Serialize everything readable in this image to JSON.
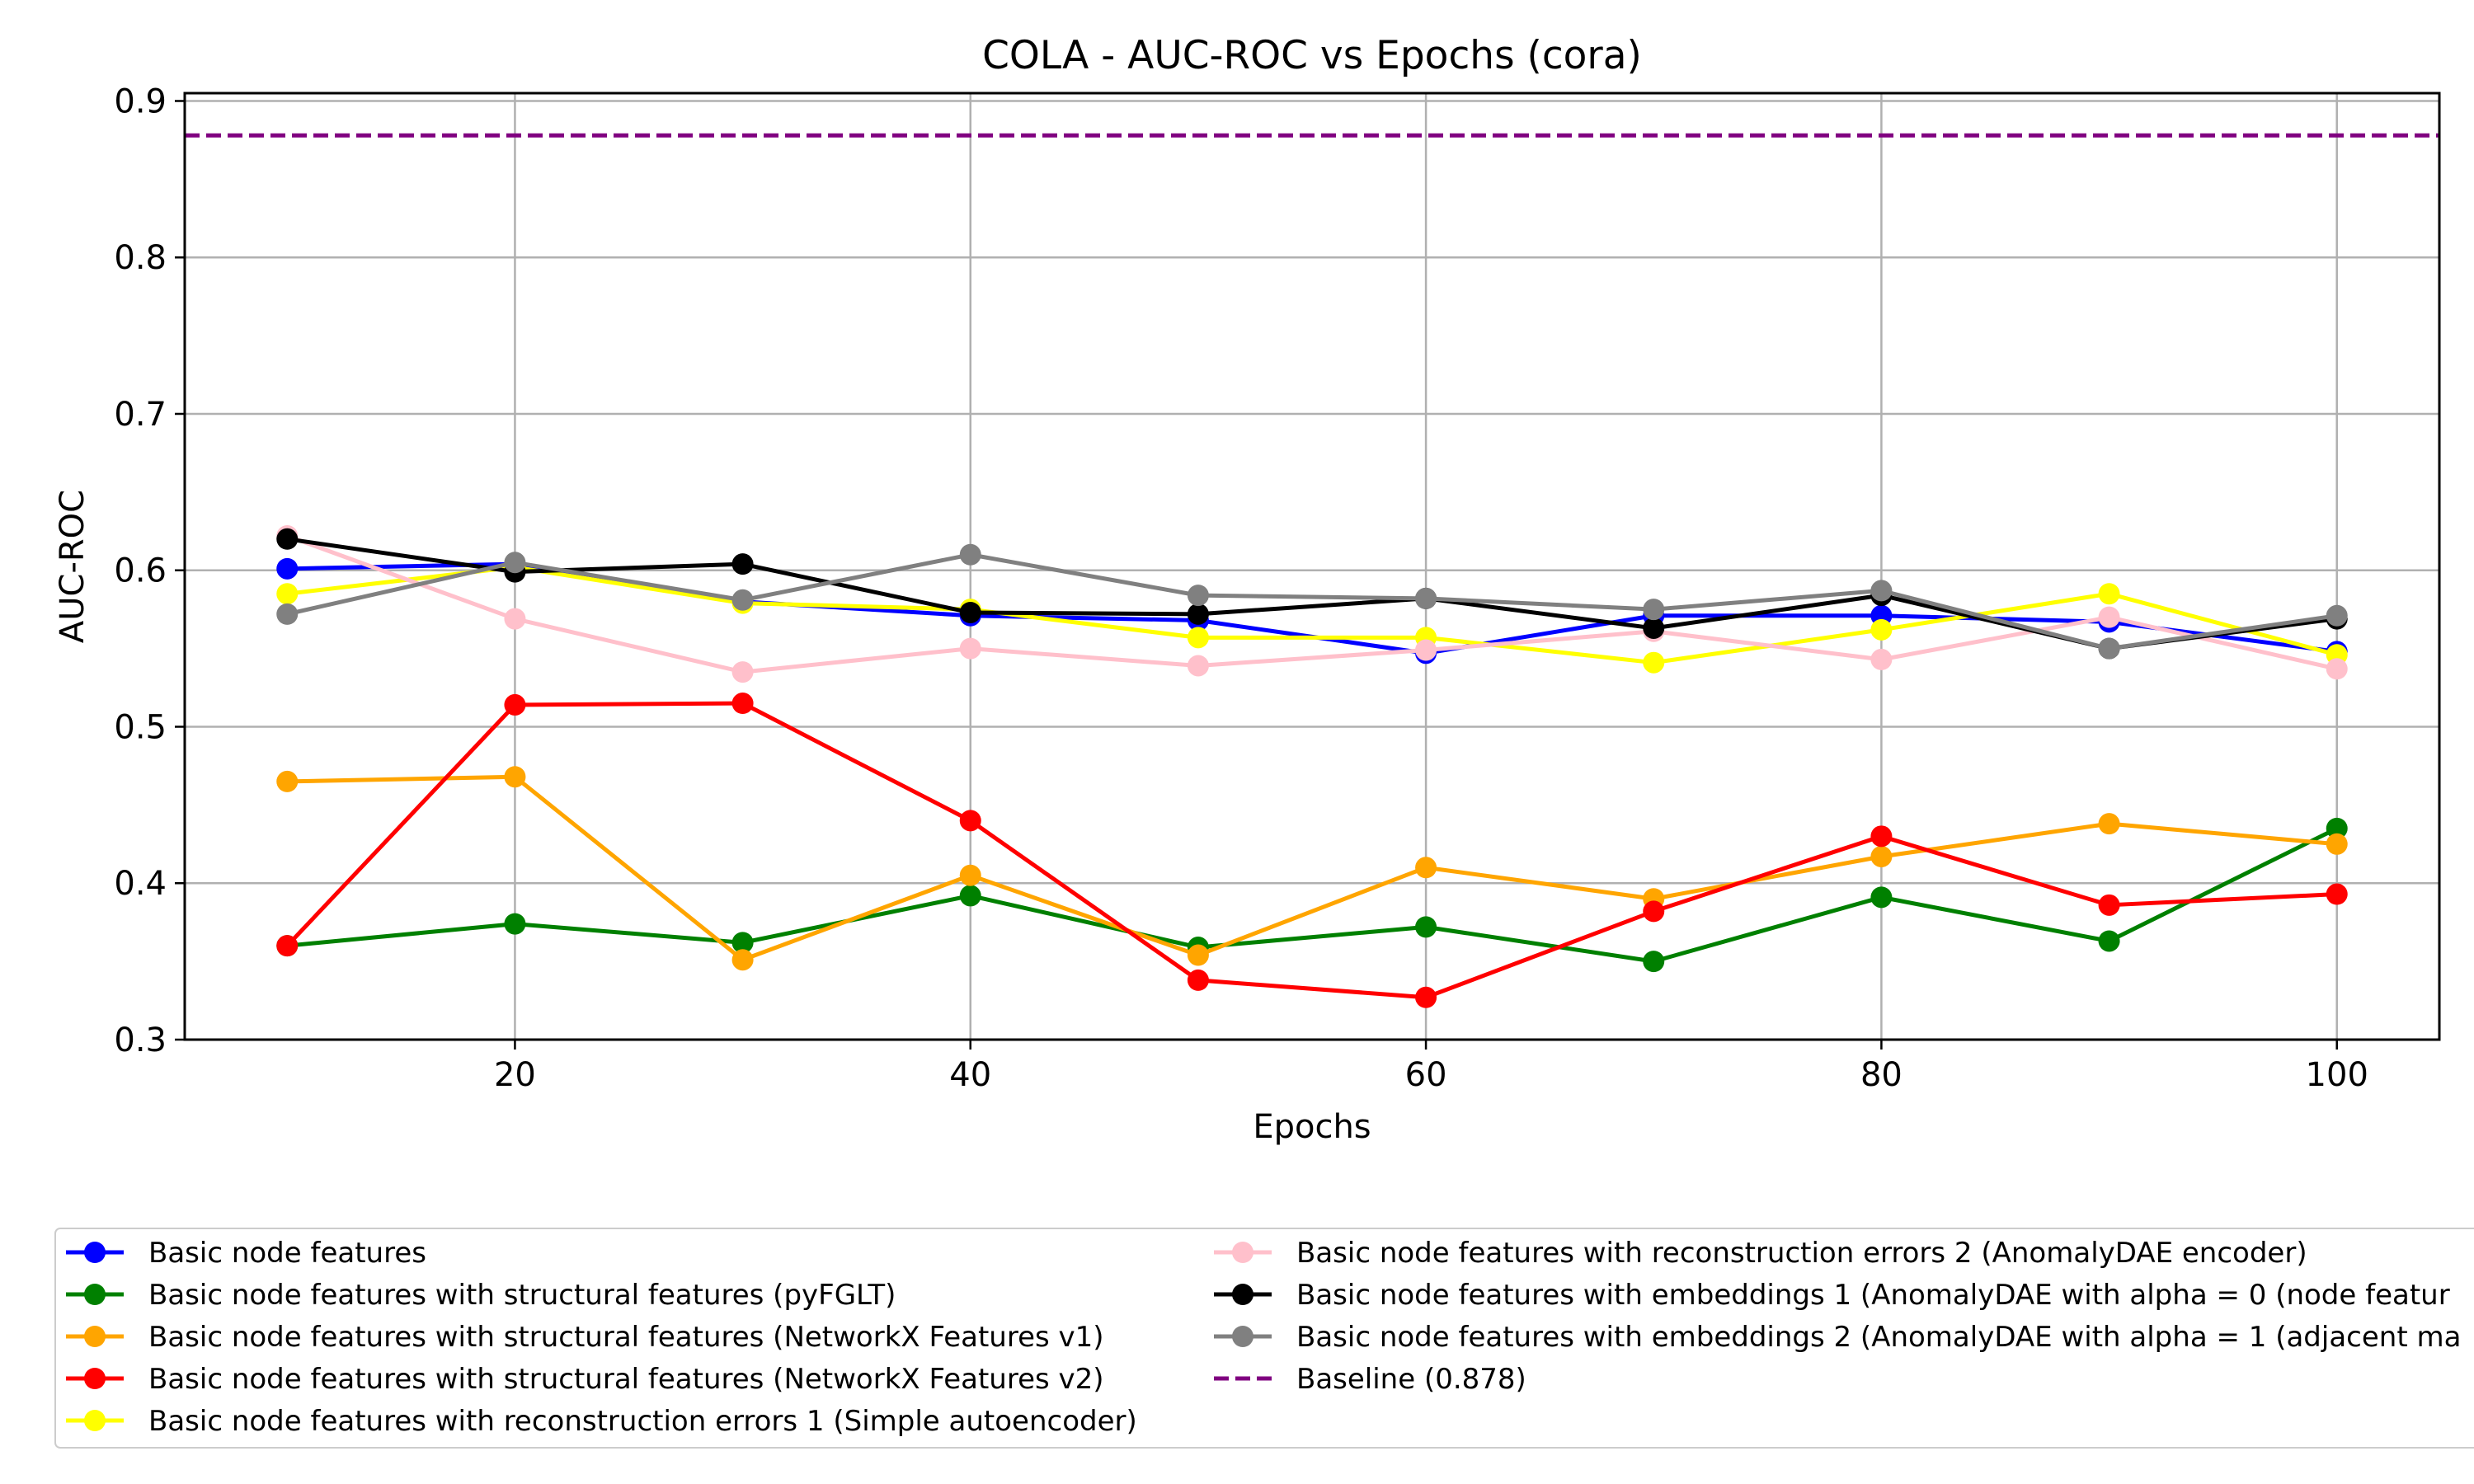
{
  "chart_data": {
    "type": "line",
    "title": "COLA - AUC-ROC vs Epochs (cora)",
    "xlabel": "Epochs",
    "ylabel": "AUC-ROC",
    "xlim": [
      5.5,
      104.5
    ],
    "ylim": [
      0.3,
      0.905
    ],
    "xticks": [
      20,
      40,
      60,
      80,
      100
    ],
    "yticks": [
      0.3,
      0.4,
      0.5,
      0.6,
      0.7,
      0.8,
      0.9
    ],
    "xtick_labels": [
      "20",
      "40",
      "60",
      "80",
      "100"
    ],
    "ytick_labels": [
      "0.3",
      "0.4",
      "0.5",
      "0.6",
      "0.7",
      "0.8",
      "0.9"
    ],
    "grid": true,
    "legend_position": "bottom",
    "x": [
      10,
      20,
      30,
      40,
      50,
      60,
      70,
      80,
      90,
      100
    ],
    "series": [
      {
        "name": "Basic node features",
        "color": "#0000ff",
        "values": [
          0.601,
          0.604,
          0.58,
          0.571,
          0.568,
          0.547,
          0.571,
          0.571,
          0.567,
          0.548
        ]
      },
      {
        "name": "Basic node features with structural features (pyFGLT)",
        "color": "#008000",
        "values": [
          0.36,
          0.374,
          0.362,
          0.392,
          0.359,
          0.372,
          0.35,
          0.391,
          0.363,
          0.435
        ]
      },
      {
        "name": "Basic node features with structural features (NetworkX Features v1)",
        "color": "#ffa500",
        "values": [
          0.465,
          0.468,
          0.351,
          0.405,
          0.354,
          0.41,
          0.39,
          0.417,
          0.438,
          0.425
        ]
      },
      {
        "name": "Basic node features with structural features (NetworkX Features v2)",
        "color": "#ff0000",
        "values": [
          0.36,
          0.514,
          0.515,
          0.44,
          0.338,
          0.327,
          0.382,
          0.43,
          0.386,
          0.393
        ]
      },
      {
        "name": "Basic node features with reconstruction errors 1 (Simple autoencoder)",
        "color": "#ffff00",
        "values": [
          0.585,
          0.602,
          0.579,
          0.575,
          0.557,
          0.557,
          0.541,
          0.562,
          0.585,
          0.546
        ]
      },
      {
        "name": "Basic node features with reconstruction errors 2 (AnomalyDAE encoder)",
        "color": "#ffc0cb",
        "values": [
          0.622,
          0.569,
          0.535,
          0.55,
          0.539,
          0.549,
          0.561,
          0.543,
          0.57,
          0.537
        ]
      },
      {
        "name": "Basic node features with embeddings 1 (AnomalyDAE with alpha = 0 (node featur",
        "color": "#000000",
        "values": [
          0.62,
          0.599,
          0.604,
          0.573,
          0.572,
          0.582,
          0.563,
          0.584,
          0.55,
          0.569
        ]
      },
      {
        "name": "Basic node features with embeddings 2 (AnomalyDAE with alpha = 1 (adjacent ma",
        "color": "#808080",
        "values": [
          0.572,
          0.605,
          0.581,
          0.61,
          0.584,
          0.582,
          0.575,
          0.587,
          0.55,
          0.571
        ]
      }
    ],
    "baseline": {
      "name": "Baseline (0.878)",
      "value": 0.878,
      "color": "#800080",
      "style": "dashed"
    }
  }
}
